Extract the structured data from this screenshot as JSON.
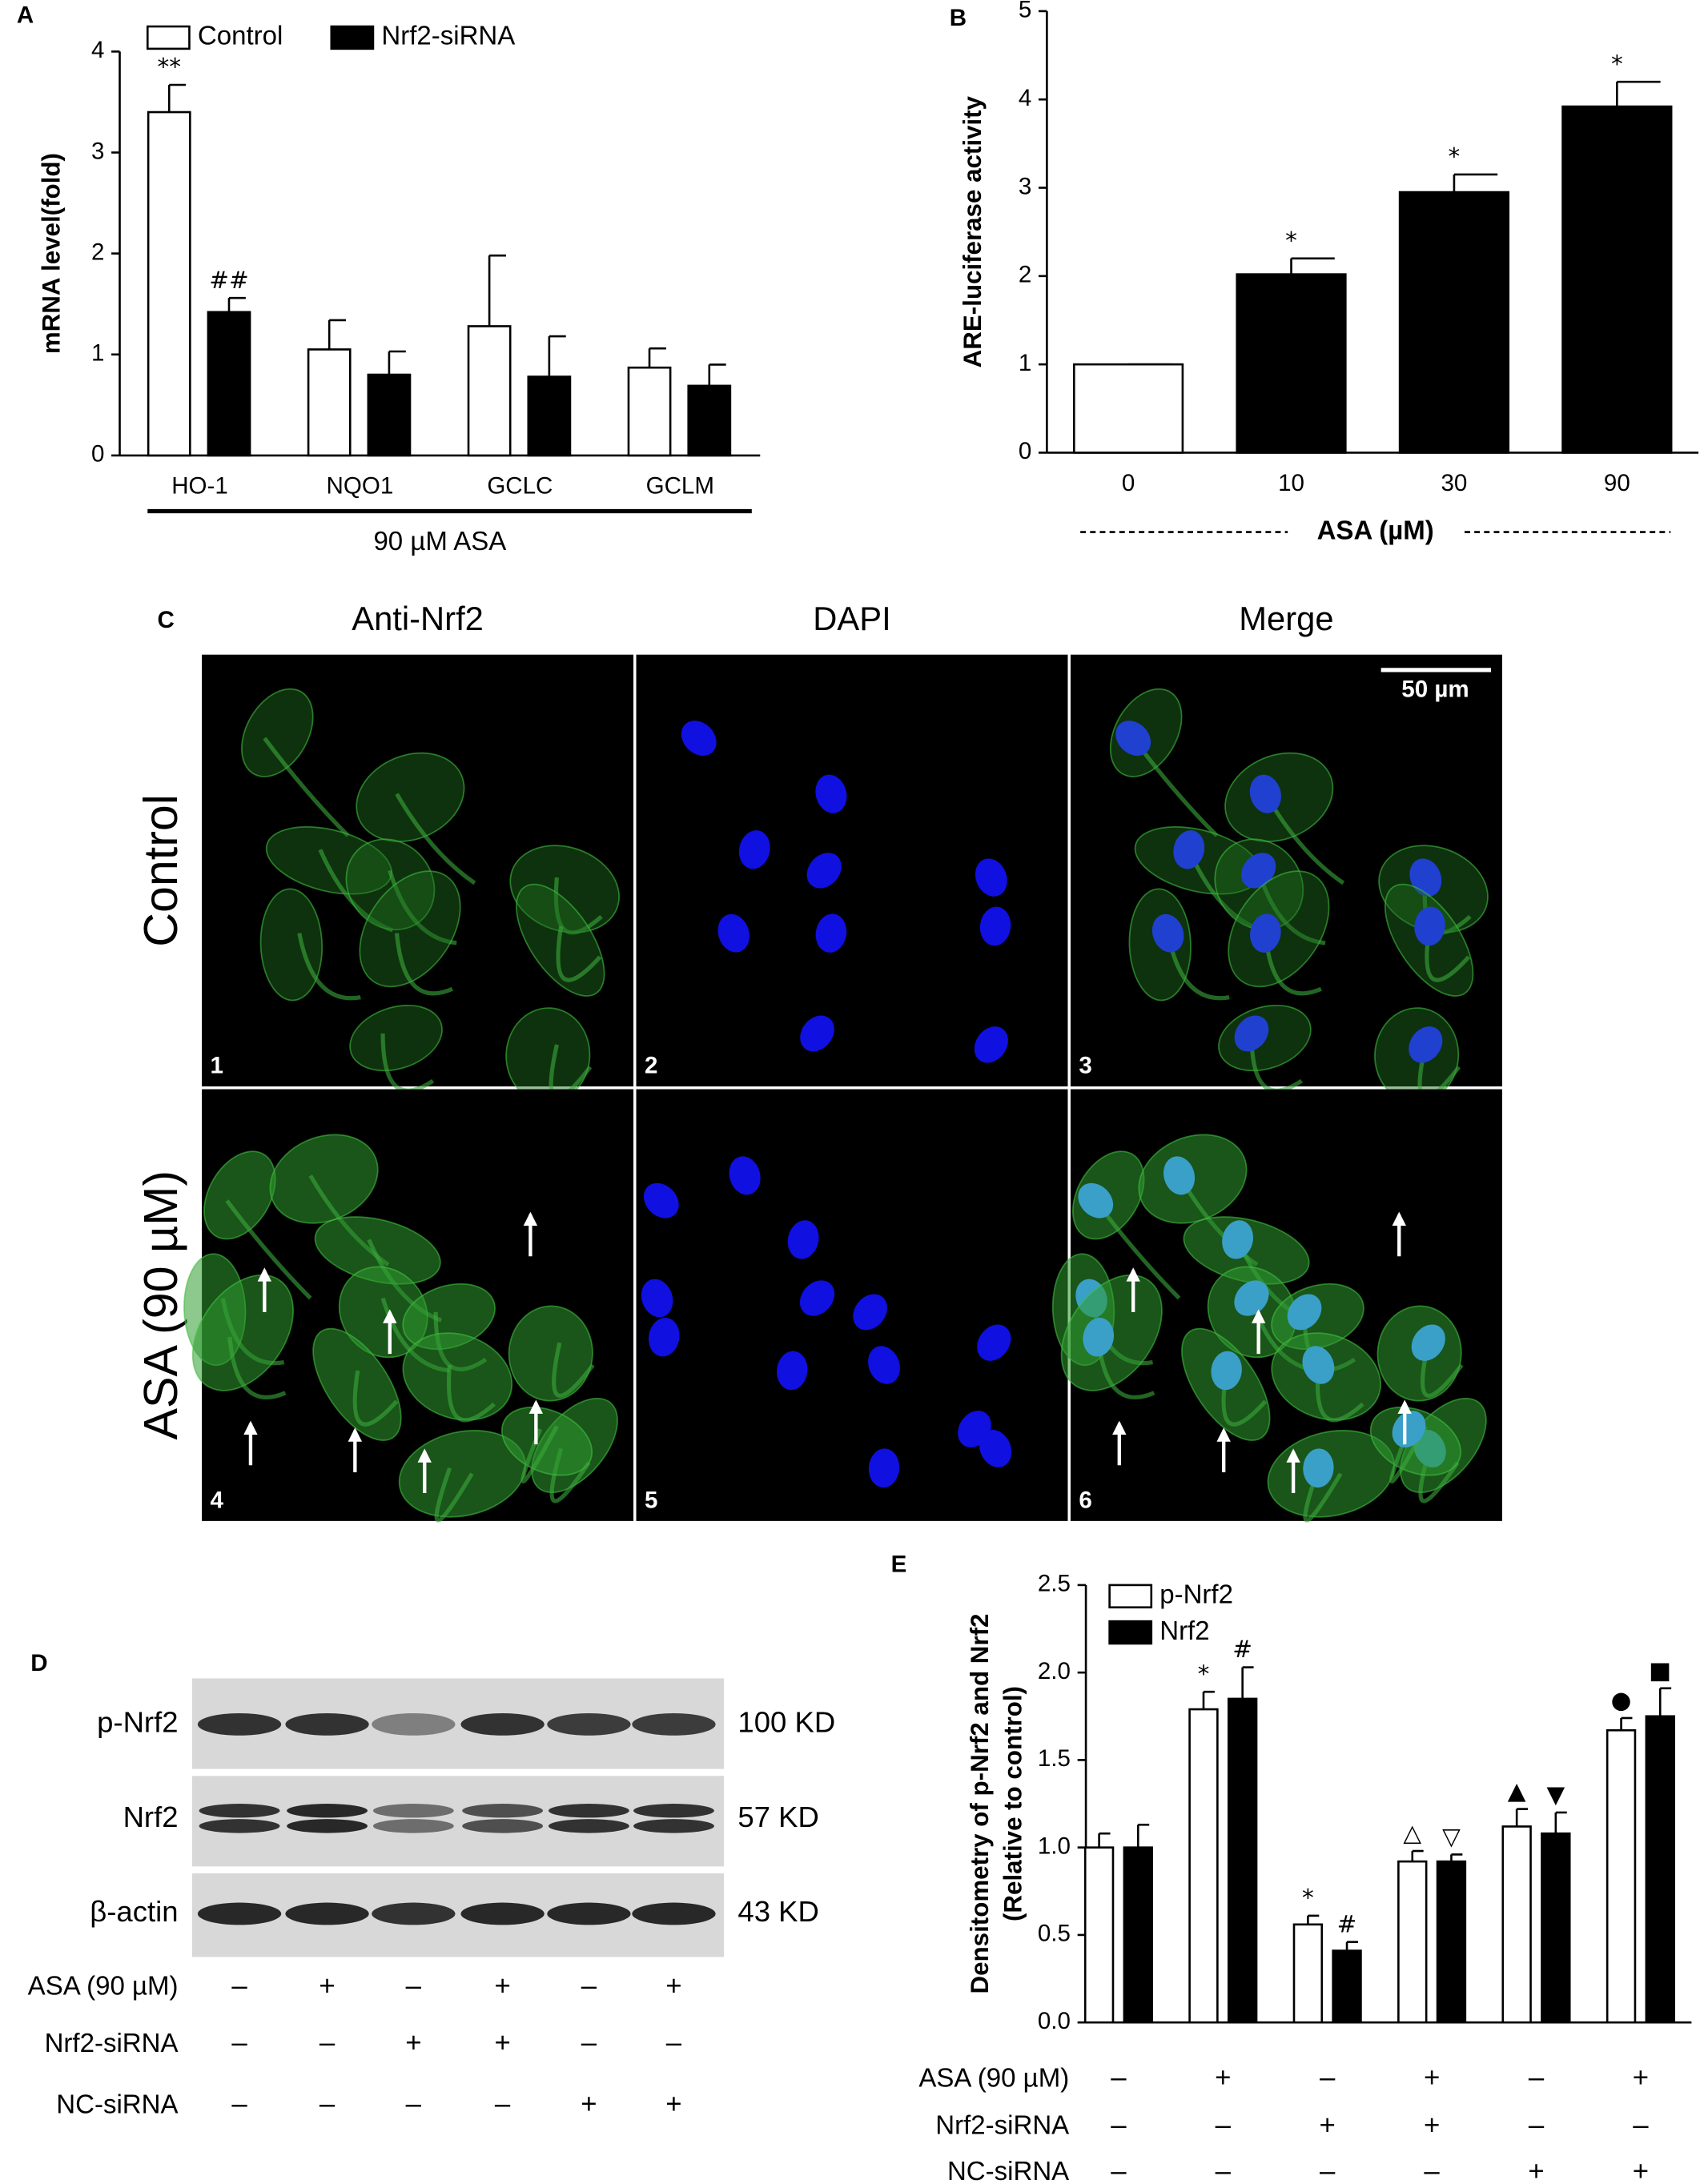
{
  "chart_data": [
    {
      "type": "bar",
      "panel": "A",
      "ylabel": "mRNA level(fold)",
      "xlabel": "90 µM ASA",
      "categories": [
        "HO-1",
        "NQO1",
        "GCLC",
        "GCLM"
      ],
      "series": [
        {
          "name": "Control",
          "color": "#ffffff",
          "values": [
            3.4,
            1.05,
            1.28,
            0.87
          ],
          "errors": [
            0.27,
            0.29,
            0.7,
            0.19
          ],
          "markers": [
            "**",
            null,
            null,
            null
          ]
        },
        {
          "name": "Nrf2-siRNA",
          "color": "#000000",
          "values": [
            1.42,
            0.8,
            0.78,
            0.69
          ],
          "errors": [
            0.14,
            0.23,
            0.4,
            0.21
          ],
          "markers": [
            "##",
            null,
            null,
            null
          ]
        }
      ],
      "ylim": [
        0,
        4
      ],
      "yticks": [
        0,
        1,
        2,
        3,
        4
      ]
    },
    {
      "type": "bar",
      "panel": "B",
      "ylabel": "ARE-luciferase activity",
      "xlabel": "ASA (µM)",
      "categories": [
        "0",
        "10",
        "30",
        "90"
      ],
      "values": [
        1.0,
        2.02,
        2.95,
        3.92
      ],
      "errors": [
        0,
        0.18,
        0.2,
        0.28
      ],
      "colors": [
        "#ffffff",
        "#000000",
        "#000000",
        "#000000"
      ],
      "markers": [
        null,
        "*",
        "*",
        "*"
      ],
      "ylim": [
        0,
        5
      ],
      "yticks": [
        0,
        1,
        2,
        3,
        4,
        5
      ]
    },
    {
      "type": "bar",
      "panel": "E",
      "ylabel": [
        "Densitometry of p-Nrf2 and Nrf2",
        "(Relative to control)"
      ],
      "categories": [
        null,
        null,
        null,
        null,
        null,
        null
      ],
      "series": [
        {
          "name": "p-Nrf2",
          "color": "#ffffff",
          "values": [
            1.0,
            1.79,
            0.56,
            0.92,
            1.12,
            1.67
          ],
          "errors": [
            0.08,
            0.1,
            0.05,
            0.06,
            0.1,
            0.07
          ],
          "markers": [
            null,
            "*",
            "*",
            "△",
            "▲",
            "●"
          ]
        },
        {
          "name": "Nrf2",
          "color": "#000000",
          "values": [
            1.0,
            1.85,
            0.41,
            0.92,
            1.08,
            1.75
          ],
          "errors": [
            0.13,
            0.18,
            0.05,
            0.04,
            0.12,
            0.16
          ],
          "markers": [
            null,
            "#",
            "#",
            "▽",
            "▼",
            "■"
          ]
        }
      ],
      "ylim": [
        0,
        2.5
      ],
      "yticks": [
        {
          "value": 0,
          "label": "0.0"
        },
        0.5,
        {
          "value": 1,
          "label": "1.0"
        },
        1.5,
        {
          "value": 2,
          "label": "2.0"
        },
        2.5
      ],
      "conditions": [
        {
          "label": "ASA (90 µM)",
          "signs": [
            "–",
            "+",
            "–",
            "+",
            "–",
            "+"
          ]
        },
        {
          "label": "Nrf2-siRNA",
          "signs": [
            "–",
            "–",
            "+",
            "+",
            "–",
            "–"
          ]
        },
        {
          "label": "NC-siRNA",
          "signs": [
            "–",
            "–",
            "–",
            "–",
            "+",
            "+"
          ]
        }
      ]
    }
  ],
  "panel_c": {
    "panel": "C",
    "columns": [
      "Anti-Nrf2",
      "DAPI",
      "Merge"
    ],
    "rows": [
      "Control",
      "ASA (90 µM)"
    ],
    "scale_bar": "50 µm",
    "tiles": [
      "1",
      "2",
      "3",
      "4",
      "5",
      "6"
    ]
  },
  "panel_d": {
    "panel": "D",
    "bands": [
      "p-Nrf2",
      "Nrf2",
      "β-actin"
    ],
    "sizes": [
      "100 KD",
      "57 KD",
      "43 KD"
    ],
    "conditions": [
      {
        "label": "ASA (90 µM)",
        "signs": [
          "–",
          "+",
          "–",
          "+",
          "–",
          "+"
        ]
      },
      {
        "label": "Nrf2-siRNA",
        "signs": [
          "–",
          "–",
          "+",
          "+",
          "–",
          "–"
        ]
      },
      {
        "label": "NC-siRNA",
        "signs": [
          "–",
          "–",
          "–",
          "–",
          "+",
          "+"
        ]
      }
    ]
  }
}
